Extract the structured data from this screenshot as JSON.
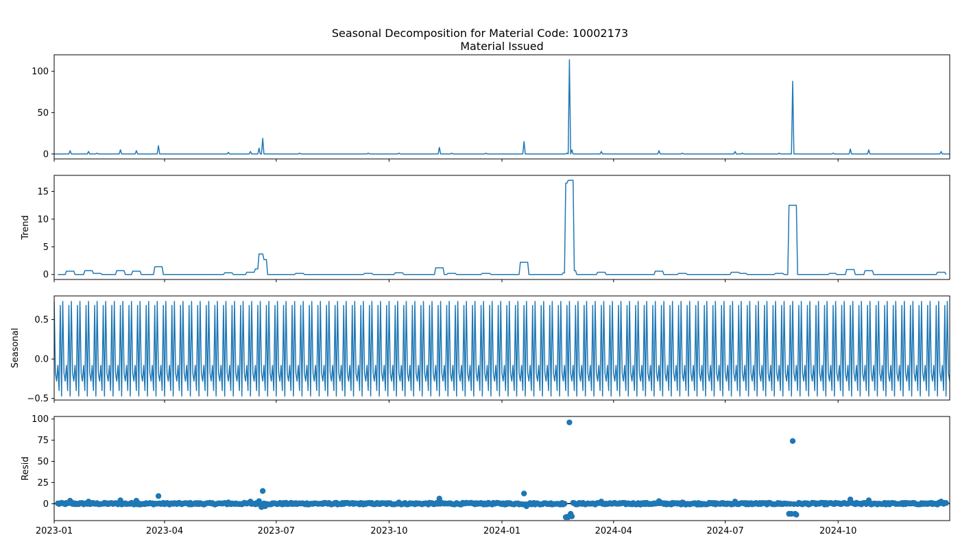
{
  "chart_data": {
    "type": "line",
    "title": "Seasonal Decomposition for Material Code: 10002173",
    "x_axis": {
      "type": "date",
      "range": [
        "2023-01-01",
        "2024-12-31"
      ],
      "ticks": [
        "2023-01-01",
        "2023-04-01",
        "2023-07-01",
        "2023-10-01",
        "2024-01-01",
        "2024-04-01",
        "2024-07-01",
        "2024-10-01"
      ],
      "tick_labels": [
        "2023-01",
        "2023-04",
        "2023-07",
        "2023-10",
        "2024-01",
        "2024-04",
        "2024-07",
        "2024-10"
      ]
    },
    "line_color": "#1f77b4",
    "zero_line_color": "#000000",
    "panels": [
      {
        "title": "Material Issued",
        "ylabel": "",
        "kind": "line",
        "ylim": [
          -6,
          120
        ],
        "yticks": [
          0,
          50,
          100
        ],
        "baseline": 0,
        "spikes": [
          {
            "date": "2023-01-14",
            "value": 4
          },
          {
            "date": "2023-01-29",
            "value": 3
          },
          {
            "date": "2023-02-05",
            "value": 1
          },
          {
            "date": "2023-02-24",
            "value": 5
          },
          {
            "date": "2023-03-09",
            "value": 4
          },
          {
            "date": "2023-03-27",
            "value": 10
          },
          {
            "date": "2023-05-23",
            "value": 2
          },
          {
            "date": "2023-06-10",
            "value": 3
          },
          {
            "date": "2023-06-17",
            "value": 7
          },
          {
            "date": "2023-06-20",
            "value": 19
          },
          {
            "date": "2023-07-20",
            "value": 1
          },
          {
            "date": "2023-09-14",
            "value": 1
          },
          {
            "date": "2023-10-09",
            "value": 1
          },
          {
            "date": "2023-11-11",
            "value": 8
          },
          {
            "date": "2023-11-21",
            "value": 1
          },
          {
            "date": "2023-12-19",
            "value": 1
          },
          {
            "date": "2024-01-19",
            "value": 15
          },
          {
            "date": "2024-02-23",
            "value": 1
          },
          {
            "date": "2024-02-25",
            "value": 114
          },
          {
            "date": "2024-02-27",
            "value": 5
          },
          {
            "date": "2024-03-22",
            "value": 3
          },
          {
            "date": "2024-05-08",
            "value": 4
          },
          {
            "date": "2024-05-27",
            "value": 1
          },
          {
            "date": "2024-07-09",
            "value": 3
          },
          {
            "date": "2024-07-15",
            "value": 1
          },
          {
            "date": "2024-08-14",
            "value": 1
          },
          {
            "date": "2024-08-25",
            "value": 88
          },
          {
            "date": "2024-09-27",
            "value": 1
          },
          {
            "date": "2024-10-11",
            "value": 6
          },
          {
            "date": "2024-10-26",
            "value": 5
          },
          {
            "date": "2024-12-24",
            "value": 3
          }
        ]
      },
      {
        "title": "",
        "ylabel": "Trend",
        "kind": "line",
        "ylim": [
          -0.9,
          17.9
        ],
        "yticks": [
          0,
          5,
          10,
          15
        ],
        "baseline": 0,
        "plateaus": [
          {
            "start": "2023-01-11",
            "end": "2023-01-18",
            "value": 0.6
          },
          {
            "start": "2023-01-26",
            "end": "2023-02-02",
            "value": 0.7
          },
          {
            "start": "2023-02-02",
            "end": "2023-02-09",
            "value": 0.2
          },
          {
            "start": "2023-02-21",
            "end": "2023-02-28",
            "value": 0.7
          },
          {
            "start": "2023-03-06",
            "end": "2023-03-13",
            "value": 0.6
          },
          {
            "start": "2023-03-24",
            "end": "2023-03-31",
            "value": 1.4
          },
          {
            "start": "2023-05-20",
            "end": "2023-05-27",
            "value": 0.3
          },
          {
            "start": "2023-06-07",
            "end": "2023-06-14",
            "value": 0.4
          },
          {
            "start": "2023-06-14",
            "end": "2023-06-17",
            "value": 1.0
          },
          {
            "start": "2023-06-17",
            "end": "2023-06-21",
            "value": 3.7
          },
          {
            "start": "2023-06-21",
            "end": "2023-06-24",
            "value": 2.7
          },
          {
            "start": "2023-07-17",
            "end": "2023-07-24",
            "value": 0.2
          },
          {
            "start": "2023-09-11",
            "end": "2023-09-18",
            "value": 0.2
          },
          {
            "start": "2023-10-06",
            "end": "2023-10-13",
            "value": 0.3
          },
          {
            "start": "2023-11-08",
            "end": "2023-11-15",
            "value": 1.2
          },
          {
            "start": "2023-11-18",
            "end": "2023-11-25",
            "value": 0.2
          },
          {
            "start": "2023-12-16",
            "end": "2023-12-23",
            "value": 0.2
          },
          {
            "start": "2024-01-16",
            "end": "2024-01-23",
            "value": 2.2
          },
          {
            "start": "2024-02-20",
            "end": "2024-02-22",
            "value": 0.3
          },
          {
            "start": "2024-02-22",
            "end": "2024-02-24",
            "value": 16.5
          },
          {
            "start": "2024-02-24",
            "end": "2024-02-29",
            "value": 17.0
          },
          {
            "start": "2024-02-29",
            "end": "2024-03-02",
            "value": 0.7
          },
          {
            "start": "2024-03-19",
            "end": "2024-03-26",
            "value": 0.4
          },
          {
            "start": "2024-05-05",
            "end": "2024-05-12",
            "value": 0.6
          },
          {
            "start": "2024-05-24",
            "end": "2024-05-31",
            "value": 0.2
          },
          {
            "start": "2024-07-06",
            "end": "2024-07-13",
            "value": 0.4
          },
          {
            "start": "2024-07-13",
            "end": "2024-07-19",
            "value": 0.2
          },
          {
            "start": "2024-08-11",
            "end": "2024-08-18",
            "value": 0.2
          },
          {
            "start": "2024-08-22",
            "end": "2024-08-29",
            "value": 12.5
          },
          {
            "start": "2024-09-24",
            "end": "2024-09-30",
            "value": 0.2
          },
          {
            "start": "2024-10-08",
            "end": "2024-10-15",
            "value": 0.9
          },
          {
            "start": "2024-10-23",
            "end": "2024-10-30",
            "value": 0.7
          },
          {
            "start": "2024-12-21",
            "end": "2024-12-28",
            "value": 0.4
          }
        ]
      },
      {
        "title": "",
        "ylabel": "Seasonal",
        "kind": "line",
        "ylim": [
          -0.52,
          0.8
        ],
        "yticks": [
          -0.5,
          0.0,
          0.5
        ],
        "period_days": 7,
        "weekly_pattern": [
          0.73,
          -0.18,
          -0.28,
          -0.08,
          -0.4,
          0.68,
          -0.47
        ]
      },
      {
        "title": "",
        "ylabel": "Resid",
        "kind": "scatter",
        "ylim": [
          -20,
          103
        ],
        "yticks": [
          0,
          25,
          50,
          75,
          100
        ],
        "zero_line": true,
        "outliers": [
          {
            "date": "2023-01-14",
            "value": 3.5
          },
          {
            "date": "2023-01-29",
            "value": 2.5
          },
          {
            "date": "2023-02-24",
            "value": 4
          },
          {
            "date": "2023-03-09",
            "value": 3.5
          },
          {
            "date": "2023-03-27",
            "value": 9
          },
          {
            "date": "2023-05-23",
            "value": 1.5
          },
          {
            "date": "2023-06-10",
            "value": 2.5
          },
          {
            "date": "2023-06-17",
            "value": 3
          },
          {
            "date": "2023-06-20",
            "value": 15
          },
          {
            "date": "2023-06-19",
            "value": -4
          },
          {
            "date": "2023-06-22",
            "value": -3
          },
          {
            "date": "2023-10-09",
            "value": 1.5
          },
          {
            "date": "2023-11-11",
            "value": 6
          },
          {
            "date": "2024-01-19",
            "value": 12
          },
          {
            "date": "2024-01-21",
            "value": -3
          },
          {
            "date": "2024-02-22",
            "value": -16
          },
          {
            "date": "2024-02-23",
            "value": -15.5
          },
          {
            "date": "2024-02-24",
            "value": -16
          },
          {
            "date": "2024-02-25",
            "value": 96
          },
          {
            "date": "2024-02-26",
            "value": -12
          },
          {
            "date": "2024-02-27",
            "value": -15
          },
          {
            "date": "2024-03-22",
            "value": 2.5
          },
          {
            "date": "2024-05-08",
            "value": 3
          },
          {
            "date": "2024-05-27",
            "value": 1.5
          },
          {
            "date": "2024-07-09",
            "value": 2.5
          },
          {
            "date": "2024-08-22",
            "value": -12
          },
          {
            "date": "2024-08-24",
            "value": -12
          },
          {
            "date": "2024-08-25",
            "value": 74
          },
          {
            "date": "2024-08-27",
            "value": -12
          },
          {
            "date": "2024-08-28",
            "value": -13
          },
          {
            "date": "2024-10-11",
            "value": 5
          },
          {
            "date": "2024-10-26",
            "value": 4
          },
          {
            "date": "2024-12-24",
            "value": 2.5
          }
        ]
      }
    ]
  }
}
